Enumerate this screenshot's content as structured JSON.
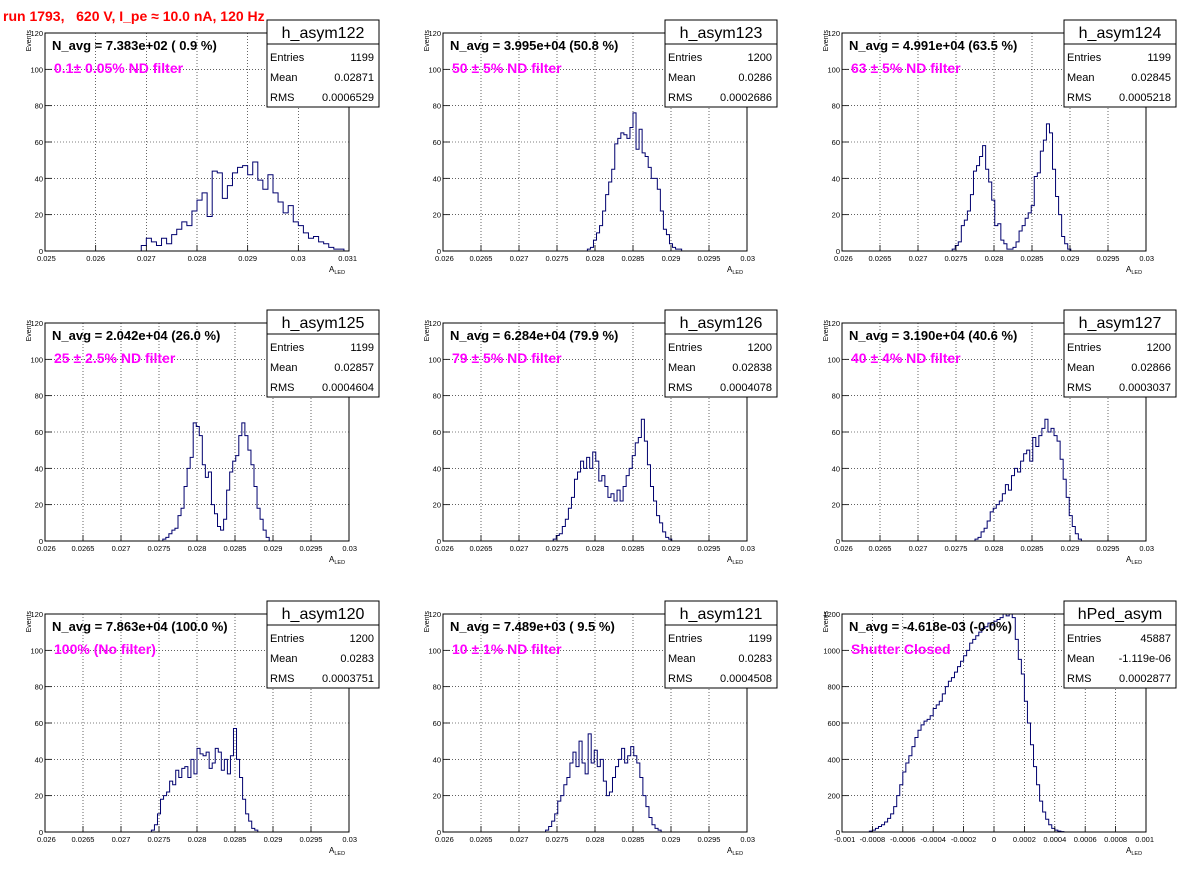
{
  "page_title": "run 1793,   620 V, I_pe ≈ 10.0 nA, 120 Hz",
  "colors": {
    "title": "#ff0000",
    "filter_label": "#ff00ff",
    "histogram_line": "#00006e",
    "grid": "#000000"
  },
  "chart_data": [
    {
      "type": "histogram",
      "name": "h_asym122",
      "navg_label": "N_avg = 7.383e+02 ( 0.9 %)",
      "filter_label": "0.1± 0.05% ND filter",
      "stats": [
        [
          "Entries",
          "1199"
        ],
        [
          "Mean",
          "0.02871"
        ],
        [
          "RMS",
          "0.0006529"
        ]
      ],
      "xlabel": "A",
      "xlabel_sub": "LED",
      "ylabel": "Events",
      "xlim": [
        0.025,
        0.031
      ],
      "ylim": [
        0,
        120
      ],
      "xticks": [
        0.025,
        0.026,
        0.027,
        0.028,
        0.029,
        0.03,
        0.031
      ],
      "xtick_labels": [
        "0.025",
        "0.026",
        "0.027",
        "0.028",
        "0.029",
        "0.03",
        "0.031"
      ],
      "yticks": [
        0,
        20,
        40,
        60,
        80,
        100,
        120
      ],
      "ytick_labels": [
        "0",
        "20",
        "40",
        "60",
        "80",
        "100",
        "120"
      ],
      "bins": {
        "x0": 0.0269,
        "width": 0.0001,
        "counts": [
          3,
          7,
          5,
          3,
          7,
          4,
          9,
          12,
          16,
          14,
          22,
          28,
          32,
          19,
          44,
          43,
          29,
          36,
          43,
          46,
          47,
          42,
          49,
          39,
          34,
          42,
          32,
          27,
          21,
          25,
          16,
          14,
          10,
          7,
          8,
          5,
          4,
          2,
          1,
          1
        ]
      }
    },
    {
      "type": "histogram",
      "name": "h_asym123",
      "navg_label": "N_avg = 3.995e+04 (50.8 %)",
      "filter_label": "50 ± 5% ND filter",
      "stats": [
        [
          "Entries",
          "1200"
        ],
        [
          "Mean",
          "0.0286"
        ],
        [
          "RMS",
          "0.0002686"
        ]
      ],
      "xlabel": "A",
      "xlabel_sub": "LED",
      "ylabel": "Events",
      "xlim": [
        0.026,
        0.03
      ],
      "ylim": [
        0,
        120
      ],
      "xticks": [
        0.026,
        0.0265,
        0.027,
        0.0275,
        0.028,
        0.0285,
        0.029,
        0.0295,
        0.03
      ],
      "xtick_labels": [
        "0.026",
        "0.0265",
        "0.027",
        "0.0275",
        "0.028",
        "0.0285",
        "0.029",
        "0.0295",
        "0.03"
      ],
      "yticks": [
        0,
        20,
        40,
        60,
        80,
        100,
        120
      ],
      "ytick_labels": [
        "0",
        "20",
        "40",
        "60",
        "80",
        "100",
        "120"
      ],
      "bins": {
        "x0": 0.0279,
        "width": 4e-05,
        "counts": [
          1,
          2,
          6,
          10,
          14,
          22,
          31,
          38,
          45,
          59,
          62,
          65,
          64,
          62,
          68,
          76,
          56,
          67,
          54,
          52,
          46,
          40,
          40,
          34,
          22,
          12,
          9,
          4,
          2,
          1,
          1
        ]
      }
    },
    {
      "type": "histogram",
      "name": "h_asym124",
      "navg_label": "N_avg = 4.991e+04 (63.5 %)",
      "filter_label": "63 ± 5% ND filter",
      "stats": [
        [
          "Entries",
          "1199"
        ],
        [
          "Mean",
          "0.02845"
        ],
        [
          "RMS",
          "0.0005218"
        ]
      ],
      "xlabel": "A",
      "xlabel_sub": "LED",
      "ylabel": "Events",
      "xlim": [
        0.026,
        0.03
      ],
      "ylim": [
        0,
        120
      ],
      "xticks": [
        0.026,
        0.0265,
        0.027,
        0.0275,
        0.028,
        0.0285,
        0.029,
        0.0295,
        0.03
      ],
      "xtick_labels": [
        "0.026",
        "0.0265",
        "0.027",
        "0.0275",
        "0.028",
        "0.0285",
        "0.029",
        "0.0295",
        "0.03"
      ],
      "yticks": [
        0,
        20,
        40,
        60,
        80,
        100,
        120
      ],
      "ytick_labels": [
        "0",
        "20",
        "40",
        "60",
        "80",
        "100",
        "120"
      ],
      "bins": {
        "x0": 0.02745,
        "width": 4e-05,
        "counts": [
          1,
          3,
          5,
          14,
          17,
          22,
          31,
          44,
          47,
          52,
          58,
          45,
          38,
          28,
          14,
          15,
          6,
          4,
          1,
          1,
          2,
          5,
          11,
          14,
          18,
          21,
          25,
          41,
          43,
          55,
          61,
          70,
          65,
          45,
          30,
          20,
          8,
          4,
          1
        ]
      }
    },
    {
      "type": "histogram",
      "name": "h_asym125",
      "navg_label": "N_avg = 2.042e+04 (26.0 %)",
      "filter_label": "25 ± 2.5% ND filter",
      "stats": [
        [
          "Entries",
          "1199"
        ],
        [
          "Mean",
          "0.02857"
        ],
        [
          "RMS",
          "0.0004604"
        ]
      ],
      "xlabel": "A",
      "xlabel_sub": "LED",
      "ylabel": "Events",
      "xlim": [
        0.026,
        0.03
      ],
      "ylim": [
        0,
        120
      ],
      "xticks": [
        0.026,
        0.0265,
        0.027,
        0.0275,
        0.028,
        0.0285,
        0.029,
        0.0295,
        0.03
      ],
      "xtick_labels": [
        "0.026",
        "0.0265",
        "0.027",
        "0.0275",
        "0.028",
        "0.0285",
        "0.029",
        "0.0295",
        "0.03"
      ],
      "yticks": [
        0,
        20,
        40,
        60,
        80,
        100,
        120
      ],
      "ytick_labels": [
        "0",
        "20",
        "40",
        "60",
        "80",
        "100",
        "120"
      ],
      "bins": {
        "x0": 0.02755,
        "width": 4e-05,
        "counts": [
          1,
          2,
          4,
          6,
          7,
          14,
          18,
          30,
          40,
          46,
          65,
          63,
          58,
          42,
          35,
          38,
          20,
          15,
          8,
          6,
          12,
          28,
          38,
          44,
          47,
          58,
          65,
          58,
          50,
          42,
          30,
          18,
          12,
          6,
          2
        ]
      }
    },
    {
      "type": "histogram",
      "name": "h_asym126",
      "navg_label": "N_avg = 6.284e+04 (79.9 %)",
      "filter_label": "79 ± 5% ND filter",
      "stats": [
        [
          "Entries",
          "1200"
        ],
        [
          "Mean",
          "0.02838"
        ],
        [
          "RMS",
          "0.0004078"
        ]
      ],
      "xlabel": "A",
      "xlabel_sub": "LED",
      "ylabel": "Events",
      "xlim": [
        0.026,
        0.03
      ],
      "ylim": [
        0,
        120
      ],
      "xticks": [
        0.026,
        0.0265,
        0.027,
        0.0275,
        0.028,
        0.0285,
        0.029,
        0.0295,
        0.03
      ],
      "xtick_labels": [
        "0.026",
        "0.0265",
        "0.027",
        "0.0275",
        "0.028",
        "0.0285",
        "0.029",
        "0.0295",
        "0.03"
      ],
      "yticks": [
        0,
        20,
        40,
        60,
        80,
        100,
        120
      ],
      "ytick_labels": [
        "0",
        "20",
        "40",
        "60",
        "80",
        "100",
        "120"
      ],
      "bins": {
        "x0": 0.02745,
        "width": 4e-05,
        "counts": [
          1,
          3,
          4,
          8,
          12,
          18,
          24,
          34,
          38,
          44,
          40,
          46,
          40,
          49,
          44,
          33,
          36,
          30,
          24,
          26,
          22,
          28,
          22,
          30,
          36,
          40,
          47,
          54,
          57,
          67,
          55,
          42,
          30,
          22,
          14,
          10,
          5,
          2,
          1
        ]
      }
    },
    {
      "type": "histogram",
      "name": "h_asym127",
      "navg_label": "N_avg = 3.190e+04 (40.6 %)",
      "filter_label": "40 ± 4% ND filter",
      "stats": [
        [
          "Entries",
          "1200"
        ],
        [
          "Mean",
          "0.02866"
        ],
        [
          "RMS",
          "0.0003037"
        ]
      ],
      "xlabel": "A",
      "xlabel_sub": "LED",
      "ylabel": "Events",
      "xlim": [
        0.026,
        0.03
      ],
      "ylim": [
        0,
        120
      ],
      "xticks": [
        0.026,
        0.0265,
        0.027,
        0.0275,
        0.028,
        0.0285,
        0.029,
        0.0295,
        0.03
      ],
      "xtick_labels": [
        "0.026",
        "0.0265",
        "0.027",
        "0.0275",
        "0.028",
        "0.0285",
        "0.029",
        "0.0295",
        "0.03"
      ],
      "yticks": [
        0,
        20,
        40,
        60,
        80,
        100,
        120
      ],
      "ytick_labels": [
        "0",
        "20",
        "40",
        "60",
        "80",
        "100",
        "120"
      ],
      "bins": {
        "x0": 0.02775,
        "width": 4e-05,
        "counts": [
          1,
          2,
          5,
          7,
          11,
          16,
          18,
          20,
          22,
          26,
          31,
          28,
          36,
          40,
          38,
          44,
          48,
          50,
          44,
          57,
          52,
          58,
          62,
          67,
          60,
          62,
          58,
          55,
          45,
          34,
          24,
          14,
          8,
          4,
          1
        ]
      }
    },
    {
      "type": "histogram",
      "name": "h_asym120",
      "navg_label": "N_avg = 7.863e+04 (100.0 %)",
      "filter_label": "100% (No filter)",
      "stats": [
        [
          "Entries",
          "1200"
        ],
        [
          "Mean",
          "0.0283"
        ],
        [
          "RMS",
          "0.0003751"
        ]
      ],
      "xlabel": "A",
      "xlabel_sub": "LED",
      "ylabel": "Events",
      "xlim": [
        0.026,
        0.03
      ],
      "ylim": [
        0,
        120
      ],
      "xticks": [
        0.026,
        0.0265,
        0.027,
        0.0275,
        0.028,
        0.0285,
        0.029,
        0.0295,
        0.03
      ],
      "xtick_labels": [
        "0.026",
        "0.0265",
        "0.027",
        "0.0275",
        "0.028",
        "0.0285",
        "0.029",
        "0.0295",
        "0.03"
      ],
      "yticks": [
        0,
        20,
        40,
        60,
        80,
        100,
        120
      ],
      "ytick_labels": [
        "0",
        "20",
        "40",
        "60",
        "80",
        "100",
        "120"
      ],
      "bins": {
        "x0": 0.0274,
        "width": 4e-05,
        "counts": [
          1,
          4,
          10,
          18,
          20,
          22,
          28,
          26,
          34,
          30,
          35,
          36,
          30,
          40,
          32,
          46,
          43,
          42,
          44,
          35,
          38,
          46,
          44,
          34,
          40,
          32,
          42,
          57,
          40,
          30,
          18,
          10,
          6,
          2,
          1
        ]
      }
    },
    {
      "type": "histogram",
      "name": "h_asym121",
      "navg_label": "N_avg = 7.489e+03 ( 9.5 %)",
      "filter_label": "10 ± 1% ND filter",
      "stats": [
        [
          "Entries",
          "1199"
        ],
        [
          "Mean",
          "0.0283"
        ],
        [
          "RMS",
          "0.0004508"
        ]
      ],
      "xlabel": "A",
      "xlabel_sub": "LED",
      "ylabel": "Events",
      "xlim": [
        0.026,
        0.03
      ],
      "ylim": [
        0,
        120
      ],
      "xticks": [
        0.026,
        0.0265,
        0.027,
        0.0275,
        0.028,
        0.0285,
        0.029,
        0.0295,
        0.03
      ],
      "xtick_labels": [
        "0.026",
        "0.0265",
        "0.027",
        "0.0275",
        "0.028",
        "0.0285",
        "0.029",
        "0.0295",
        "0.03"
      ],
      "yticks": [
        0,
        20,
        40,
        60,
        80,
        100,
        120
      ],
      "ytick_labels": [
        "0",
        "20",
        "40",
        "60",
        "80",
        "100",
        "120"
      ],
      "bins": {
        "x0": 0.02735,
        "width": 4e-05,
        "counts": [
          1,
          3,
          6,
          10,
          17,
          20,
          26,
          30,
          38,
          44,
          36,
          50,
          38,
          32,
          54,
          38,
          45,
          36,
          40,
          28,
          20,
          22,
          30,
          36,
          40,
          46,
          38,
          42,
          47,
          42,
          38,
          30,
          20,
          14,
          8,
          4,
          2,
          1
        ]
      }
    },
    {
      "type": "histogram",
      "name": "hPed_asym",
      "navg_label": "N_avg = -4.618e-03 (-0.0%)",
      "filter_label": "Shutter Closed",
      "stats": [
        [
          "Entries",
          "45887"
        ],
        [
          "Mean",
          "-1.119e-06"
        ],
        [
          "RMS",
          "0.0002877"
        ]
      ],
      "xlabel": "A",
      "xlabel_sub": "LED",
      "ylabel": "Events",
      "xlim": [
        -0.001,
        0.001
      ],
      "ylim": [
        0,
        1200
      ],
      "xticks": [
        -0.001,
        -0.0008,
        -0.0006,
        -0.0004,
        -0.0002,
        0,
        0.0002,
        0.0004,
        0.0006,
        0.0008,
        0.001
      ],
      "xtick_labels": [
        "-0.001",
        "-0.0008",
        "-0.0006",
        "-0.0004",
        "-0.0002",
        "0",
        "0.0002",
        "0.0004",
        "0.0006",
        "0.0008",
        "0.001"
      ],
      "yticks": [
        0,
        200,
        400,
        600,
        800,
        1000,
        1200
      ],
      "ytick_labels": [
        "0",
        "200",
        "400",
        "600",
        "800",
        "1000",
        "1200"
      ],
      "bins": {
        "x0": -0.00082,
        "width": 2e-05,
        "counts": [
          5,
          10,
          20,
          30,
          40,
          55,
          75,
          100,
          140,
          200,
          260,
          330,
          380,
          420,
          470,
          520,
          560,
          590,
          610,
          620,
          640,
          680,
          700,
          720,
          760,
          800,
          830,
          850,
          880,
          910,
          940,
          970,
          1000,
          1040,
          1060,
          1080,
          1100,
          1120,
          1130,
          1150,
          1140,
          1160,
          1170,
          1180,
          1200,
          1190,
          1200,
          1180,
          1060,
          950,
          870,
          720,
          600,
          480,
          360,
          260,
          170,
          110,
          70,
          40,
          20,
          10,
          5,
          2
        ]
      }
    }
  ]
}
